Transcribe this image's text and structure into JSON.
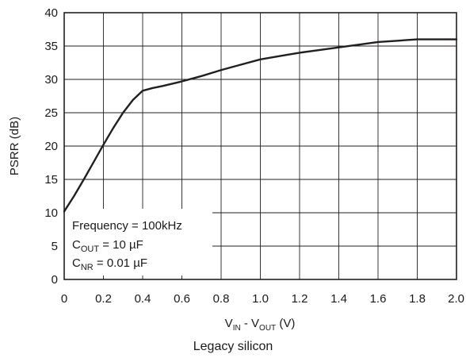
{
  "chart_data": {
    "type": "line",
    "xlabel": {
      "main1": "V",
      "sub1": "IN",
      "sep": " -  ",
      "main2": "V",
      "sub2": "OUT",
      "unit": " (V)"
    },
    "ylabel": "PSRR (dB)",
    "xlim": [
      0,
      2.0
    ],
    "ylim": [
      0,
      40
    ],
    "x_ticks": [
      "0",
      "0.2",
      "0.4",
      "0.6",
      "0.8",
      "1.0",
      "1.2",
      "1.4",
      "1.6",
      "1.8",
      "2.0"
    ],
    "y_ticks": [
      "0",
      "5",
      "10",
      "15",
      "20",
      "25",
      "30",
      "35",
      "40"
    ],
    "grid": true,
    "series": [
      {
        "color": "#231f20",
        "x": [
          0.0,
          0.05,
          0.1,
          0.15,
          0.2,
          0.25,
          0.3,
          0.35,
          0.4,
          0.45,
          0.5,
          0.6,
          0.7,
          0.8,
          0.9,
          1.0,
          1.1,
          1.2,
          1.3,
          1.4,
          1.5,
          1.6,
          1.7,
          1.8,
          1.9,
          2.0
        ],
        "y": [
          10.2,
          12.5,
          15.0,
          17.6,
          20.2,
          22.7,
          25.0,
          26.9,
          28.3,
          28.7,
          29.0,
          29.7,
          30.5,
          31.4,
          32.2,
          33.0,
          33.5,
          34.0,
          34.4,
          34.8,
          35.2,
          35.6,
          35.8,
          36.0,
          36.0,
          36.0
        ]
      }
    ],
    "legend": {
      "line1": "Frequency = 100kHz",
      "line2": {
        "main": "C",
        "sub": "OUT",
        "rest": " = 10 µF"
      },
      "line3": {
        "main": "C",
        "sub": "NR",
        "rest": " = 0.01 µF"
      },
      "placement": "bottom-left"
    }
  },
  "caption": "Legacy silicon"
}
